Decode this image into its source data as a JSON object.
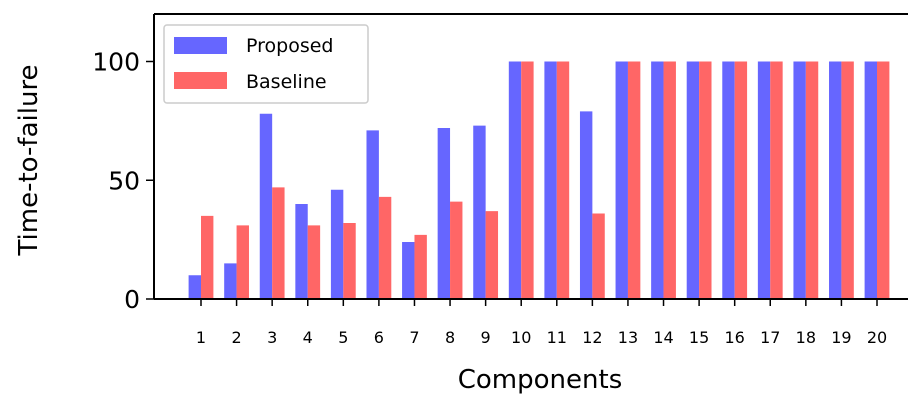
{
  "chart_data": {
    "type": "bar",
    "title": "",
    "xlabel": "Components",
    "ylabel": "Time-to-failure",
    "categories": [
      "1",
      "2",
      "3",
      "4",
      "5",
      "6",
      "7",
      "8",
      "9",
      "10",
      "11",
      "12",
      "13",
      "14",
      "15",
      "16",
      "17",
      "18",
      "19",
      "20"
    ],
    "series": [
      {
        "name": "Proposed",
        "color": "#6666ff",
        "values": [
          10,
          15,
          78,
          40,
          46,
          71,
          24,
          72,
          73,
          100,
          100,
          79,
          100,
          100,
          100,
          100,
          100,
          100,
          100,
          100
        ]
      },
      {
        "name": "Baseline",
        "color": "#ff6666",
        "values": [
          35,
          31,
          47,
          31,
          32,
          43,
          27,
          41,
          37,
          100,
          100,
          36,
          100,
          100,
          100,
          100,
          100,
          100,
          100,
          100
        ]
      }
    ],
    "ylim": [
      0,
      120
    ],
    "yticks": [
      0,
      50,
      100
    ],
    "legend_position": "top-left",
    "grid": false
  }
}
